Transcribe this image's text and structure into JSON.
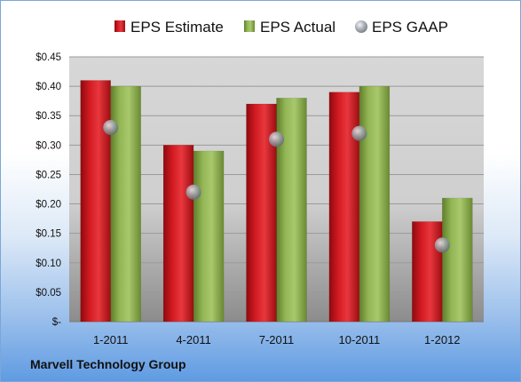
{
  "company_label": "Marvell Technology Group",
  "chart_data": {
    "type": "bar",
    "categories": [
      "1-2011",
      "4-2011",
      "7-2011",
      "10-2011",
      "1-2012"
    ],
    "series": [
      {
        "name": "EPS Estimate",
        "type": "bar",
        "color": "#c8141c",
        "values": [
          0.41,
          0.3,
          0.37,
          0.39,
          0.17
        ]
      },
      {
        "name": "EPS Actual",
        "type": "bar",
        "color": "#8db04a",
        "values": [
          0.4,
          0.29,
          0.38,
          0.4,
          0.21
        ]
      },
      {
        "name": "EPS GAAP",
        "type": "marker",
        "color": "#9aa0a8",
        "values": [
          0.33,
          0.22,
          0.31,
          0.32,
          0.13
        ]
      }
    ],
    "y_ticks": [
      "$-",
      "$0.05",
      "$0.10",
      "$0.15",
      "$0.20",
      "$0.25",
      "$0.30",
      "$0.35",
      "$0.40",
      "$0.45"
    ],
    "ylim": [
      0,
      0.45
    ],
    "grid": true,
    "legend_position": "top"
  }
}
